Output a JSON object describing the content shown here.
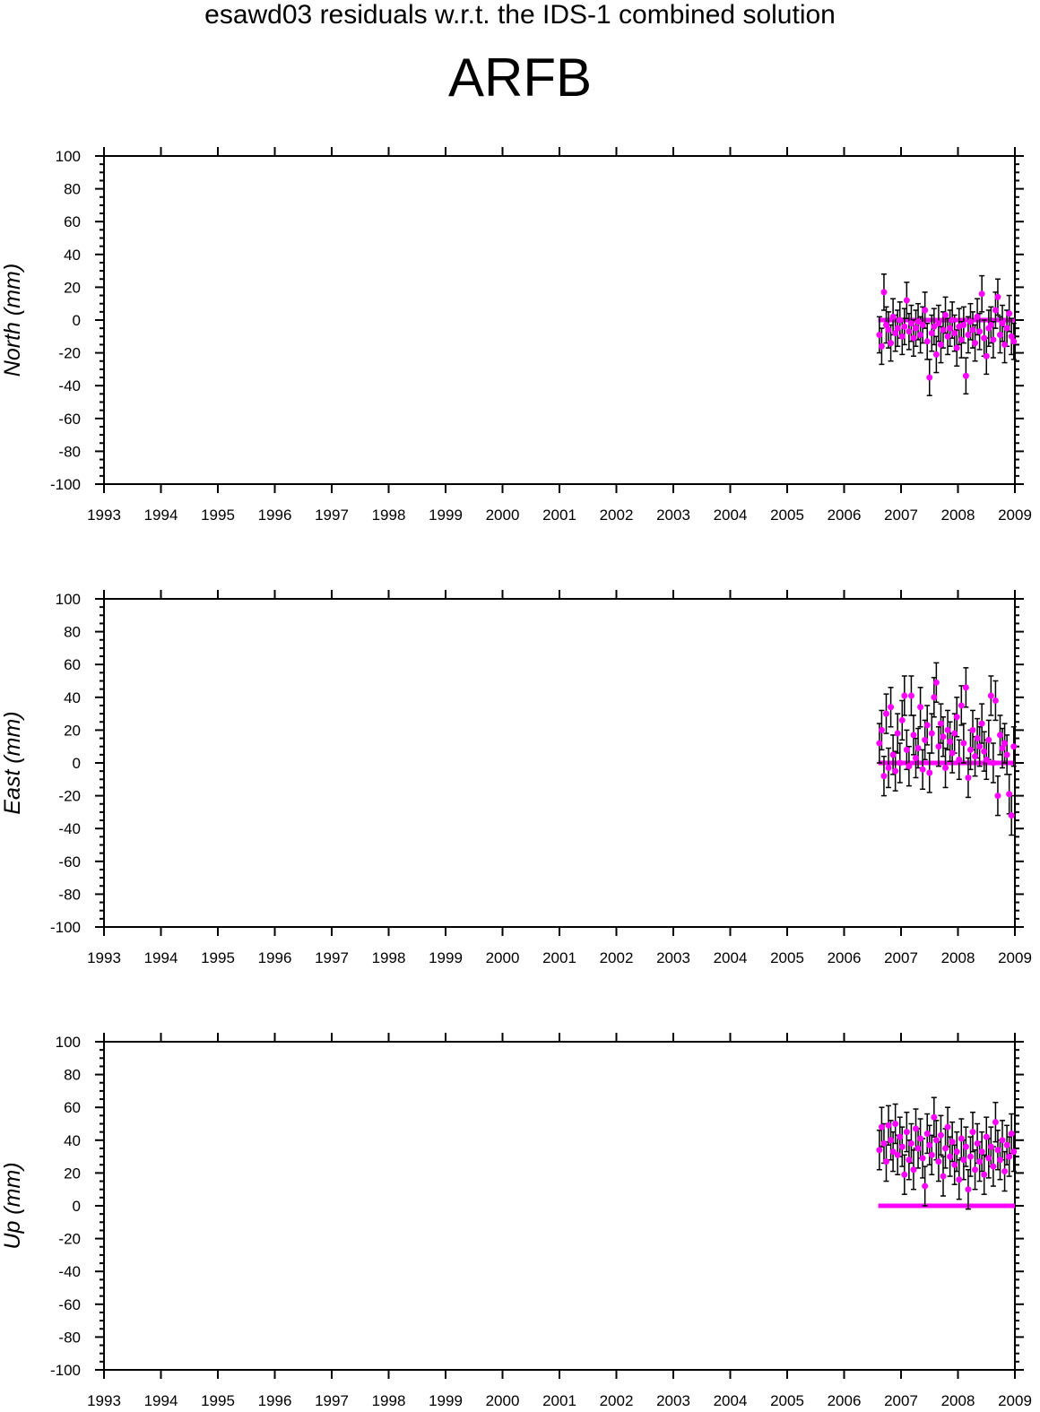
{
  "figure": {
    "title": "esawd03 residuals w.r.t. the IDS-1 combined solution",
    "station": "ARFB"
  },
  "colors": {
    "marker": "#ff00ff",
    "error_bar": "#000000",
    "axis": "#000000",
    "background": "#ffffff"
  },
  "chart_data": [
    {
      "type": "scatter",
      "title": "",
      "xlabel": "",
      "ylabel": "North (mm)",
      "xlim": [
        1993,
        2009
      ],
      "ylim": [
        -100,
        100
      ],
      "x_ticks": [
        "1993",
        "1994",
        "1995",
        "1996",
        "1997",
        "1998",
        "1999",
        "2000",
        "2001",
        "2002",
        "2003",
        "2004",
        "2005",
        "2006",
        "2007",
        "2008",
        "2009"
      ],
      "y_ticks": [
        "100",
        "80",
        "60",
        "40",
        "20",
        "0",
        "-20",
        "-40",
        "-60",
        "-80",
        "-100"
      ],
      "grid": false,
      "x_range_of_data": [
        2006.6,
        2009.0
      ],
      "reference_line_value": 0,
      "error_bar_halfwidth_mm": 11,
      "series": [
        {
          "x": [
            2006.62,
            2006.66,
            2006.7,
            2006.74,
            2006.78,
            2006.82,
            2006.86,
            2006.9,
            2006.94,
            2006.98,
            2007.02,
            2007.06,
            2007.1,
            2007.14,
            2007.18,
            2007.22,
            2007.26,
            2007.3,
            2007.34,
            2007.38,
            2007.42,
            2007.46,
            2007.5,
            2007.54,
            2007.58,
            2007.62,
            2007.66,
            2007.7,
            2007.74,
            2007.78,
            2007.82,
            2007.86,
            2007.9,
            2007.94,
            2007.98,
            2008.02,
            2008.06,
            2008.1,
            2008.14,
            2008.18,
            2008.22,
            2008.26,
            2008.3,
            2008.34,
            2008.38,
            2008.42,
            2008.46,
            2008.5,
            2008.54,
            2008.58,
            2008.62,
            2008.66,
            2008.7,
            2008.74,
            2008.78,
            2008.82,
            2008.86,
            2008.9,
            2008.94,
            2008.98
          ],
          "values": [
            -9,
            -16,
            17,
            -3,
            -6,
            -14,
            2,
            -8,
            -5,
            0,
            -10,
            -4,
            12,
            -7,
            -2,
            -11,
            -5,
            -1,
            -9,
            -3,
            6,
            -13,
            -35,
            -8,
            -4,
            -21,
            -2,
            -15,
            -6,
            3,
            -10,
            -5,
            0,
            -8,
            -17,
            -4,
            -12,
            -3,
            -34,
            -9,
            -1,
            -6,
            -14,
            2,
            -7,
            16,
            -11,
            -22,
            -5,
            -3,
            -12,
            6,
            14,
            -9,
            -2,
            -15,
            -5,
            4,
            -10,
            -13
          ]
        }
      ]
    },
    {
      "type": "scatter",
      "title": "",
      "xlabel": "",
      "ylabel": "East (mm)",
      "xlim": [
        1993,
        2009
      ],
      "ylim": [
        -100,
        100
      ],
      "x_ticks": [
        "1993",
        "1994",
        "1995",
        "1996",
        "1997",
        "1998",
        "1999",
        "2000",
        "2001",
        "2002",
        "2003",
        "2004",
        "2005",
        "2006",
        "2007",
        "2008",
        "2009"
      ],
      "y_ticks": [
        "100",
        "80",
        "60",
        "40",
        "20",
        "0",
        "-20",
        "-40",
        "-60",
        "-80",
        "-100"
      ],
      "grid": false,
      "x_range_of_data": [
        2006.6,
        2009.0
      ],
      "reference_line_value": 0,
      "error_bar_halfwidth_mm": 12,
      "series": [
        {
          "x": [
            2006.62,
            2006.66,
            2006.7,
            2006.74,
            2006.78,
            2006.82,
            2006.86,
            2006.9,
            2006.94,
            2006.98,
            2007.02,
            2007.06,
            2007.1,
            2007.14,
            2007.18,
            2007.22,
            2007.26,
            2007.3,
            2007.34,
            2007.38,
            2007.42,
            2007.46,
            2007.5,
            2007.54,
            2007.58,
            2007.62,
            2007.66,
            2007.7,
            2007.74,
            2007.78,
            2007.82,
            2007.86,
            2007.9,
            2007.94,
            2007.98,
            2008.02,
            2008.06,
            2008.1,
            2008.14,
            2008.18,
            2008.22,
            2008.26,
            2008.3,
            2008.34,
            2008.38,
            2008.42,
            2008.46,
            2008.5,
            2008.54,
            2008.58,
            2008.62,
            2008.66,
            2008.7,
            2008.74,
            2008.78,
            2008.82,
            2008.86,
            2008.9,
            2008.94,
            2008.98
          ],
          "values": [
            12,
            20,
            -8,
            30,
            -3,
            34,
            5,
            -5,
            18,
            0,
            26,
            41,
            8,
            -2,
            41,
            17,
            3,
            9,
            34,
            -4,
            14,
            23,
            -6,
            18,
            40,
            49,
            10,
            24,
            16,
            -3,
            20,
            13,
            6,
            18,
            28,
            2,
            35,
            12,
            46,
            -9,
            8,
            20,
            4,
            15,
            10,
            24,
            7,
            2,
            14,
            41,
            0,
            38,
            -20,
            17,
            9,
            12,
            5,
            -19,
            -32,
            10
          ]
        }
      ]
    },
    {
      "type": "scatter",
      "title": "",
      "xlabel": "",
      "ylabel": "Up (mm)",
      "xlim": [
        1993,
        2009
      ],
      "ylim": [
        -100,
        100
      ],
      "x_ticks": [
        "1993",
        "1994",
        "1995",
        "1996",
        "1997",
        "1998",
        "1999",
        "2000",
        "2001",
        "2002",
        "2003",
        "2004",
        "2005",
        "2006",
        "2007",
        "2008",
        "2009"
      ],
      "y_ticks": [
        "100",
        "80",
        "60",
        "40",
        "20",
        "0",
        "-20",
        "-40",
        "-60",
        "-80",
        "-100"
      ],
      "grid": false,
      "x_range_of_data": [
        2006.6,
        2009.0
      ],
      "reference_line_value": 0,
      "error_bar_halfwidth_mm": 12,
      "series": [
        {
          "x": [
            2006.62,
            2006.66,
            2006.7,
            2006.74,
            2006.78,
            2006.82,
            2006.86,
            2006.9,
            2006.94,
            2006.98,
            2007.02,
            2007.06,
            2007.1,
            2007.14,
            2007.18,
            2007.22,
            2007.26,
            2007.3,
            2007.34,
            2007.38,
            2007.42,
            2007.46,
            2007.5,
            2007.54,
            2007.58,
            2007.62,
            2007.66,
            2007.7,
            2007.74,
            2007.78,
            2007.82,
            2007.86,
            2007.9,
            2007.94,
            2007.98,
            2008.02,
            2008.06,
            2008.1,
            2008.14,
            2008.18,
            2008.22,
            2008.26,
            2008.3,
            2008.34,
            2008.38,
            2008.42,
            2008.46,
            2008.5,
            2008.54,
            2008.58,
            2008.62,
            2008.66,
            2008.7,
            2008.74,
            2008.78,
            2008.82,
            2008.86,
            2008.9,
            2008.94,
            2008.98
          ],
          "values": [
            34,
            48,
            38,
            27,
            49,
            40,
            33,
            50,
            31,
            42,
            36,
            19,
            45,
            28,
            38,
            22,
            47,
            35,
            41,
            29,
            12,
            44,
            37,
            31,
            54,
            40,
            27,
            43,
            18,
            35,
            48,
            30,
            39,
            25,
            33,
            16,
            41,
            28,
            36,
            10,
            30,
            45,
            22,
            38,
            27,
            33,
            19,
            42,
            29,
            36,
            24,
            51,
            34,
            28,
            40,
            21,
            37,
            30,
            44,
            33
          ]
        }
      ]
    }
  ]
}
